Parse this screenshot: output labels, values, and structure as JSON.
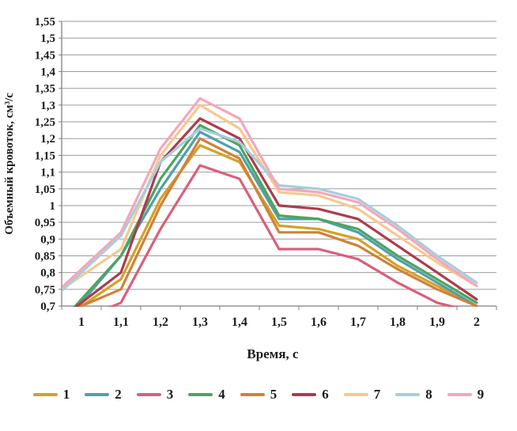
{
  "chart_data": {
    "type": "line",
    "title": "",
    "xlabel": "Время, с",
    "ylabel": "Объемный кровоток, см³/с",
    "x": [
      1,
      1.1,
      1.2,
      1.3,
      1.4,
      1.5,
      1.6,
      1.7,
      1.8,
      1.9,
      2
    ],
    "x_tick_labels": [
      "1",
      "1,1",
      "1,2",
      "1,3",
      "1,4",
      "1,5",
      "1,6",
      "1,7",
      "1,8",
      "1,9",
      "2"
    ],
    "ylim": [
      0.7,
      1.55
    ],
    "ytick_step": 0.05,
    "y_tick_labels": [
      "1,55",
      "1,5",
      "1,45",
      "1,4",
      "1,35",
      "1,3",
      "1,25",
      "1,2",
      "1,15",
      "1,1",
      "1,05",
      "1",
      "0,95",
      "0,9",
      "0,85",
      "0,8",
      "0,75",
      "0,7"
    ],
    "grid": true,
    "legend_position": "bottom",
    "colors": {
      "background": "#ffffff",
      "gridline": "#9b9b9b",
      "axis": "#808080",
      "text": "#1b1b1b"
    },
    "series": [
      {
        "name": "1",
        "color": "#d4a029",
        "values": [
          0.7,
          0.78,
          1.02,
          1.18,
          1.13,
          0.94,
          0.93,
          0.9,
          0.82,
          0.76,
          0.7
        ]
      },
      {
        "name": "2",
        "color": "#4fa0ae",
        "values": [
          0.71,
          0.85,
          1.05,
          1.22,
          1.16,
          0.96,
          0.96,
          0.92,
          0.84,
          0.77,
          0.7
        ]
      },
      {
        "name": "3",
        "color": "#d9607a",
        "values": [
          0.66,
          0.71,
          0.93,
          1.12,
          1.08,
          0.87,
          0.87,
          0.84,
          0.77,
          0.71,
          0.68
        ]
      },
      {
        "name": "4",
        "color": "#4ea45f",
        "values": [
          0.72,
          0.85,
          1.08,
          1.24,
          1.18,
          0.97,
          0.96,
          0.93,
          0.85,
          0.78,
          0.71
        ]
      },
      {
        "name": "5",
        "color": "#d08238",
        "values": [
          0.7,
          0.75,
          1.0,
          1.2,
          1.14,
          0.92,
          0.92,
          0.88,
          0.81,
          0.75,
          0.7
        ]
      },
      {
        "name": "6",
        "color": "#ae3b4d",
        "values": [
          0.71,
          0.8,
          1.13,
          1.26,
          1.2,
          1.0,
          0.99,
          0.96,
          0.88,
          0.8,
          0.72
        ]
      },
      {
        "name": "7",
        "color": "#f6c98e",
        "values": [
          0.79,
          0.87,
          1.15,
          1.3,
          1.23,
          1.04,
          1.03,
          0.99,
          0.91,
          0.83,
          0.76
        ]
      },
      {
        "name": "8",
        "color": "#a6cede",
        "values": [
          0.8,
          0.91,
          1.13,
          1.23,
          1.19,
          1.06,
          1.05,
          1.02,
          0.94,
          0.85,
          0.77
        ]
      },
      {
        "name": "9",
        "color": "#f4a7bb",
        "values": [
          0.81,
          0.92,
          1.17,
          1.32,
          1.26,
          1.05,
          1.04,
          1.01,
          0.93,
          0.84,
          0.76
        ]
      }
    ]
  },
  "legend": {
    "items": [
      "1",
      "2",
      "3",
      "4",
      "5",
      "6",
      "7",
      "8",
      "9"
    ]
  }
}
